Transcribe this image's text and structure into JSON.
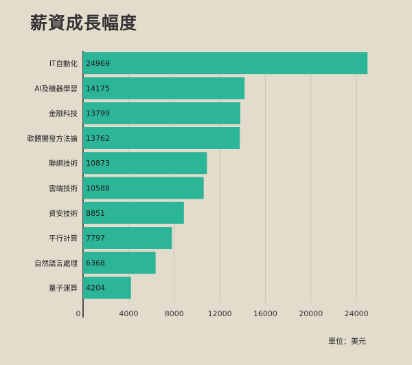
{
  "title": "薪資成長幅度",
  "unit": "單位：美元",
  "colors": {
    "bar": "#2db597",
    "grid": "#c9c2b4",
    "axis": "#222222",
    "background": "#e3dccd"
  },
  "chart_data": {
    "type": "bar",
    "orientation": "horizontal",
    "categories": [
      "IT自動化",
      "AI及機器學習",
      "金融科技",
      "軟體開發方法論",
      "聯網技術",
      "雲端技術",
      "資安技術",
      "平行計算",
      "自然語言處理",
      "量子運算"
    ],
    "values": [
      24969,
      14175,
      13799,
      13762,
      10873,
      10588,
      8851,
      7797,
      6368,
      4204
    ],
    "xlim": [
      0,
      26000
    ],
    "xticks": [
      0,
      4000,
      8000,
      12000,
      16000,
      20000,
      24000
    ],
    "grid": true
  }
}
